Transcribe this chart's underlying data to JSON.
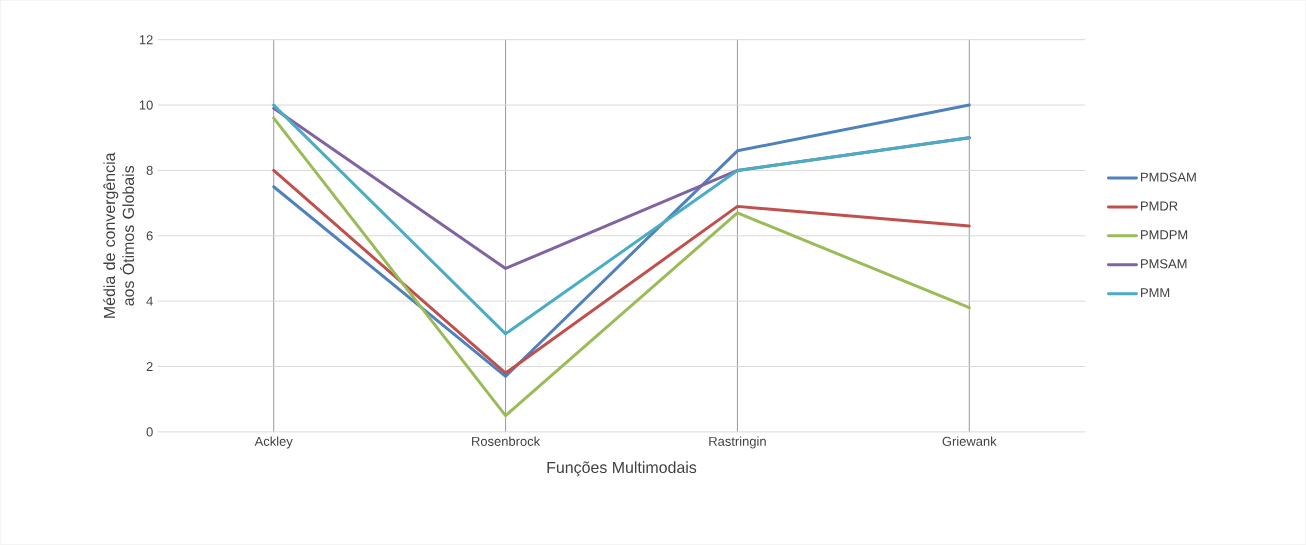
{
  "chart_data": {
    "type": "line",
    "xlabel": "Funções Multimodais",
    "ylabel": "Média de convergência aos Ótimos Globais",
    "categories": [
      "Ackley",
      "Rosenbrock",
      "Rastringin",
      "Griewank"
    ],
    "series": [
      {
        "name": "PMDSAM",
        "color": "#4f81bd",
        "values": [
          7.5,
          1.7,
          8.6,
          10
        ]
      },
      {
        "name": "PMDR",
        "color": "#c0504d",
        "values": [
          8,
          1.8,
          6.9,
          6.3
        ]
      },
      {
        "name": "PMDPM",
        "color": "#9bbb59",
        "values": [
          9.6,
          0.5,
          6.7,
          3.8
        ]
      },
      {
        "name": "PMSAM",
        "color": "#8064a2",
        "values": [
          9.9,
          5,
          8,
          9
        ]
      },
      {
        "name": "PMM",
        "color": "#4bacc6",
        "values": [
          10,
          3,
          8,
          9
        ]
      }
    ],
    "ylim": [
      0,
      12
    ],
    "yticks": [
      0,
      2,
      4,
      6,
      8,
      10,
      12
    ],
    "grid": true,
    "legend": "right",
    "marker": "none",
    "line_style": "solid"
  }
}
